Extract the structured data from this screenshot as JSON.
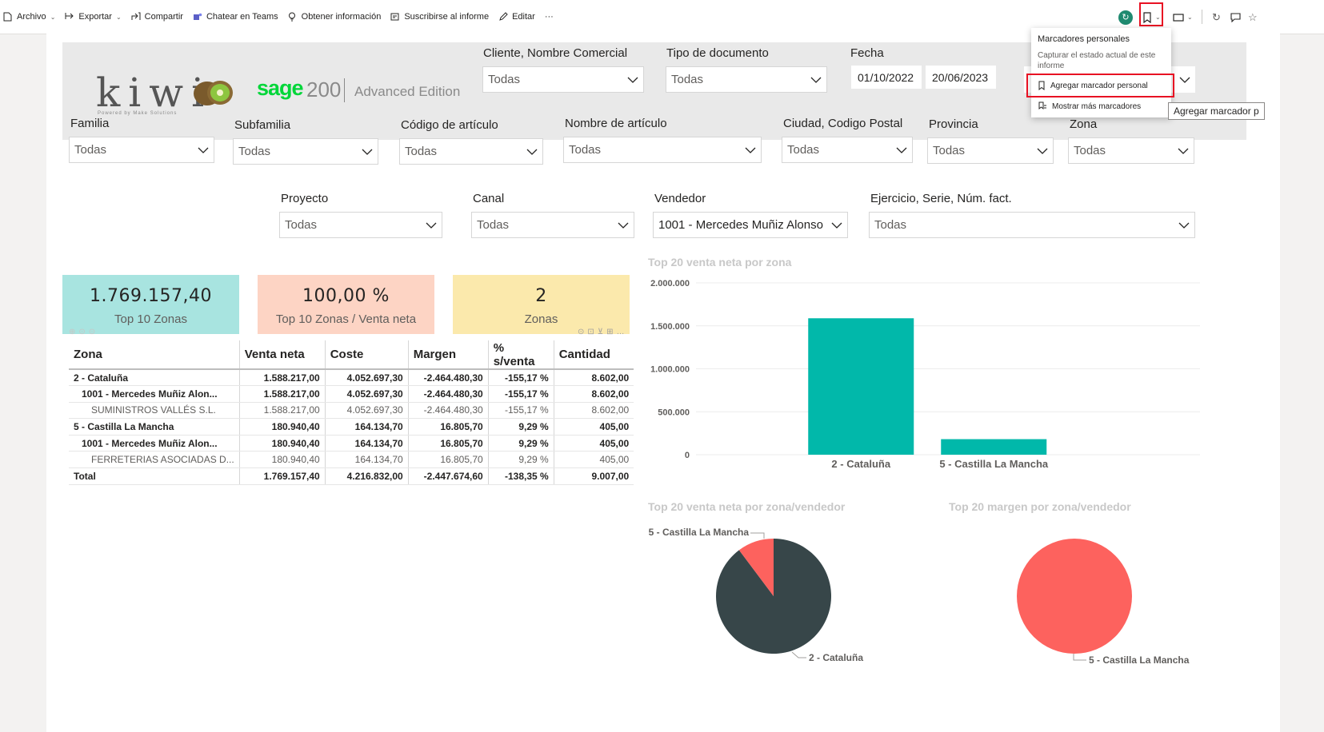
{
  "toolbar": {
    "items": [
      {
        "label": "Archivo",
        "icon": "file-icon",
        "caret": true
      },
      {
        "label": "Exportar",
        "icon": "export-icon",
        "caret": true
      },
      {
        "label": "Compartir",
        "icon": "share-icon",
        "caret": false
      },
      {
        "label": "Chatear en Teams",
        "icon": "teams-icon",
        "caret": false
      },
      {
        "label": "Obtener información",
        "icon": "lightbulb-icon",
        "caret": false
      },
      {
        "label": "Suscribirse al informe",
        "icon": "subscribe-icon",
        "caret": false
      },
      {
        "label": "Editar",
        "icon": "pencil-icon",
        "caret": false
      }
    ],
    "more": "···"
  },
  "logos": {
    "kiwi": "kiwi",
    "kiwi_tagline": "Powered by Make Solutions",
    "sage": "sage",
    "sage_version": "200",
    "edition": "Advanced Edition"
  },
  "slicers": {
    "cliente": {
      "title": "Cliente, Nombre Comercial",
      "value": "Todas"
    },
    "tipo_doc": {
      "title": "Tipo de documento",
      "value": "Todas"
    },
    "fecha": {
      "title": "Fecha",
      "from": "01/10/2022",
      "to": "20/06/2023"
    },
    "familia": {
      "title": "Familia",
      "value": "Todas"
    },
    "subfamilia": {
      "title": "Subfamilia",
      "value": "Todas"
    },
    "codigo_articulo": {
      "title": "Código de artículo",
      "value": "Todas"
    },
    "nombre_articulo": {
      "title": "Nombre de artículo",
      "value": "Todas"
    },
    "ciudad": {
      "title": "Ciudad, Codigo Postal",
      "value": "Todas"
    },
    "provincia": {
      "title": "Provincia",
      "value": "Todas"
    },
    "zona": {
      "title": "Zona",
      "value": "Todas"
    },
    "proyecto": {
      "title": "Proyecto",
      "value": "Todas"
    },
    "canal": {
      "title": "Canal",
      "value": "Todas"
    },
    "vendedor": {
      "title": "Vendedor",
      "value": "1001 - Mercedes Muñiz Alonso"
    },
    "ejercicio": {
      "title": "Ejercicio, Serie, Núm. fact.",
      "value": "Todas"
    }
  },
  "kpis": [
    {
      "value": "1.769.157,40",
      "label": "Top 10 Zonas",
      "color": "#a8e4e0"
    },
    {
      "value": "100,00 %",
      "label": "Top 10 Zonas / Venta neta",
      "color": "#fdd4c4"
    },
    {
      "value": "2",
      "label": "Zonas",
      "color": "#fbe9ac"
    }
  ],
  "table": {
    "headers": [
      "Zona",
      "Venta neta",
      "Coste",
      "Margen",
      "% s/venta",
      "Cantidad"
    ],
    "rows": [
      {
        "style": "b",
        "cells": [
          "2 - Cataluña",
          "1.588.217,00",
          "4.052.697,30",
          "-2.464.480,30",
          "-155,17 %",
          "8.602,00"
        ]
      },
      {
        "style": "b sub",
        "cells": [
          "1001 - Mercedes Muñiz Alon...",
          "1.588.217,00",
          "4.052.697,30",
          "-2.464.480,30",
          "-155,17 %",
          "8.602,00"
        ]
      },
      {
        "style": "n",
        "cells": [
          "SUMINISTROS VALLÉS S.L.",
          "1.588.217,00",
          "4.052.697,30",
          "-2.464.480,30",
          "-155,17 %",
          "8.602,00"
        ]
      },
      {
        "style": "b",
        "cells": [
          "5 - Castilla La Mancha",
          "180.940,40",
          "164.134,70",
          "16.805,70",
          "9,29 %",
          "405,00"
        ]
      },
      {
        "style": "b sub",
        "cells": [
          "1001 - Mercedes Muñiz Alon...",
          "180.940,40",
          "164.134,70",
          "16.805,70",
          "9,29 %",
          "405,00"
        ]
      },
      {
        "style": "n",
        "cells": [
          "FERRETERIAS ASOCIADAS D...",
          "180.940,40",
          "164.134,70",
          "16.805,70",
          "9,29 %",
          "405,00"
        ]
      },
      {
        "style": "t",
        "cells": [
          "Total",
          "1.769.157,40",
          "4.216.832,00",
          "-2.447.674,60",
          "-138,35 %",
          "9.007,00"
        ]
      }
    ]
  },
  "chart_data": [
    {
      "type": "bar",
      "title": "Top 20 venta neta por zona",
      "categories": [
        "2 - Cataluña",
        "5 - Castilla La Mancha"
      ],
      "values": [
        1588217,
        180940.4
      ],
      "ylim": [
        0,
        2000000
      ],
      "yticks": [
        0,
        500000,
        1000000,
        1500000,
        2000000
      ],
      "ytick_labels": [
        "0",
        "500.000",
        "1.000.000",
        "1.500.000",
        "2.000.000"
      ],
      "color": "#01b8aa",
      "grid": true
    },
    {
      "type": "pie",
      "title": "Top 20 venta neta por zona/vendedor",
      "slices": [
        {
          "label": "2 - Cataluña",
          "value": 1588217,
          "color": "#374649"
        },
        {
          "label": "5 - Castilla La Mancha",
          "value": 180940.4,
          "color": "#fd625e"
        }
      ]
    },
    {
      "type": "pie",
      "title": "Top 20 margen por zona/vendedor",
      "slices": [
        {
          "label": "5 - Castilla La Mancha",
          "value": 16805.7,
          "color": "#fd625e"
        }
      ]
    }
  ],
  "bookmark_menu": {
    "header": "Marcadores personales",
    "description": "Capturar el estado actual de este informe",
    "add_label": "Agregar marcador personal",
    "more_label": "Mostrar más marcadores"
  },
  "tooltip": {
    "text": "Agregar marcador p"
  }
}
